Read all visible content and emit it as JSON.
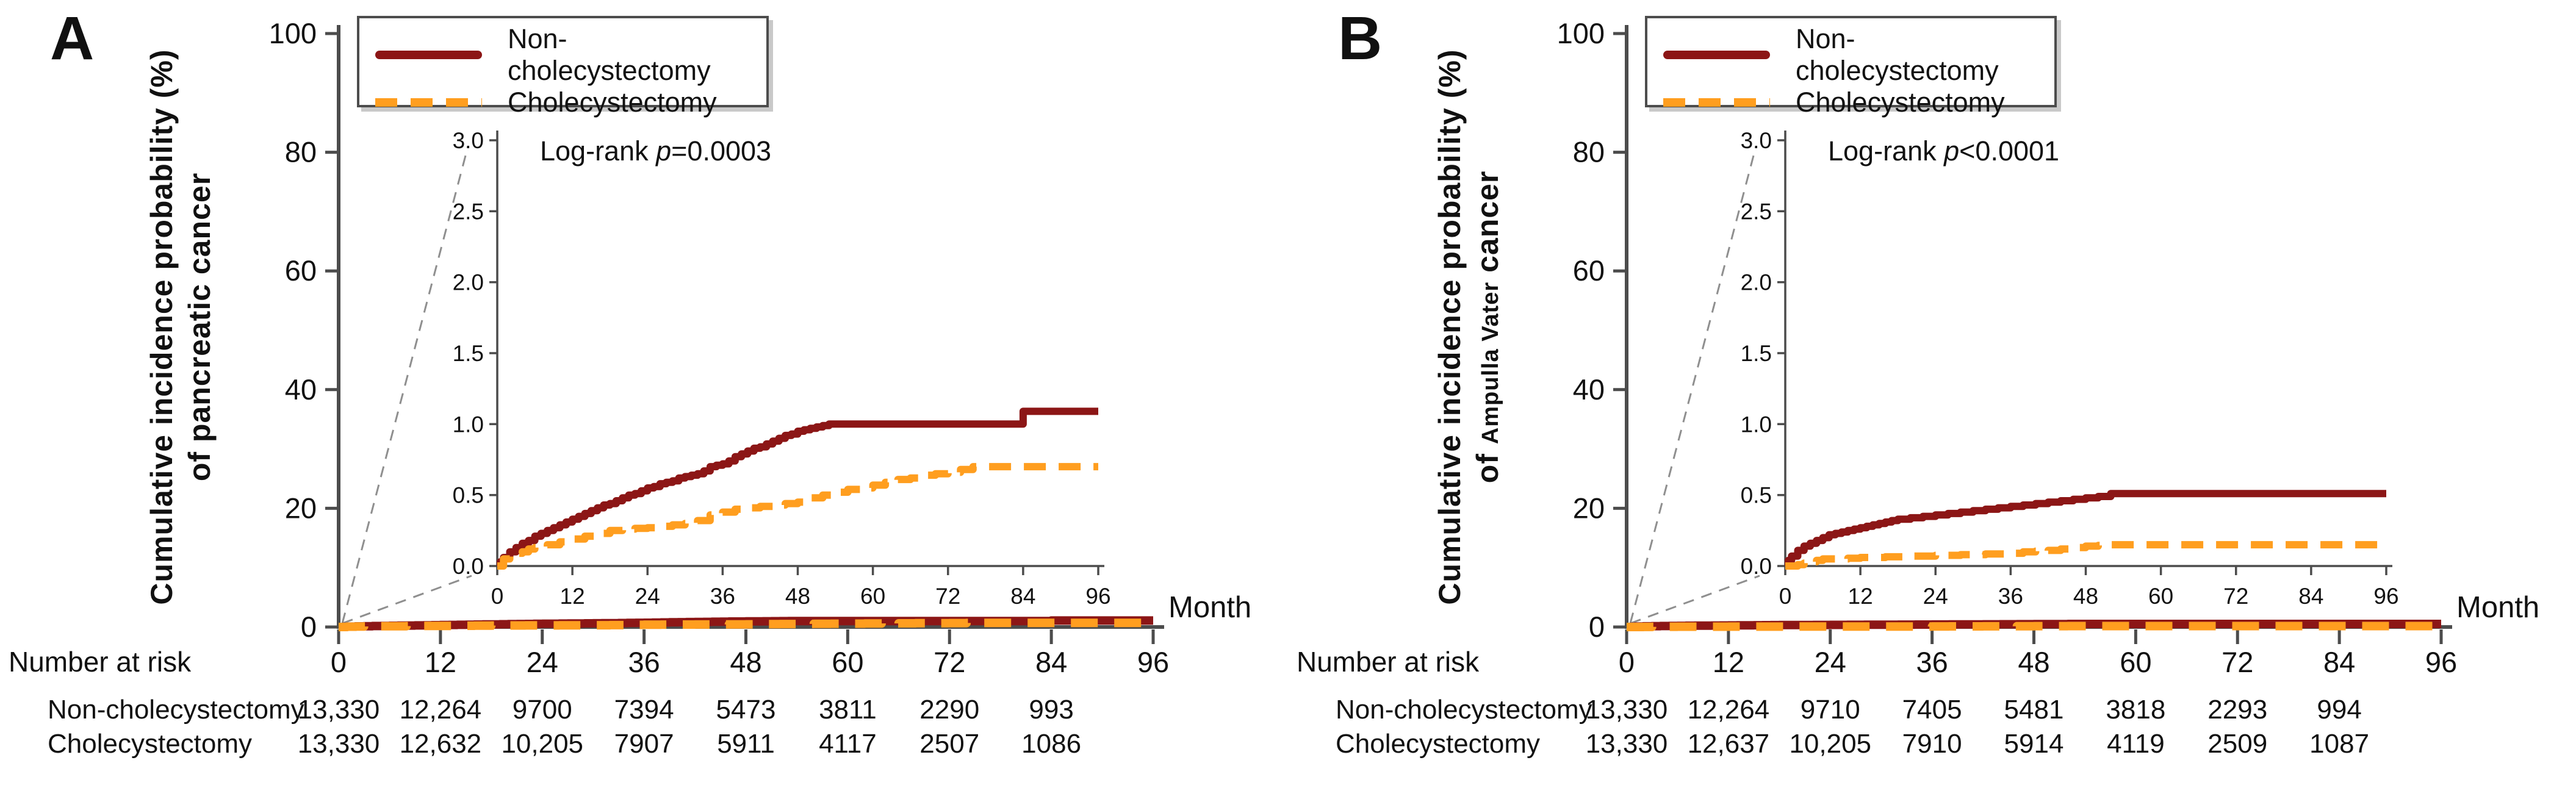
{
  "palette": {
    "non_cholecystectomy": "#8c1616",
    "cholecystectomy": "#ff9e1f",
    "axis": "#4c4c4c",
    "connector": "#8f8f8f",
    "text": "#111111"
  },
  "panels": [
    {
      "letter": "A",
      "ylabel_line1": "Cumulative incidence probability (%)",
      "ylabel_line2_prefix": "of pancreatic cancer",
      "ylabel_line2_small": "",
      "ylabel_line2_suffix": "",
      "xlabel": "Month",
      "number_at_risk_label": "Number at risk",
      "logrank": {
        "prefix": "Log-rank ",
        "p": "p",
        "rest": "=0.0003"
      },
      "legend": [
        {
          "label": "Non-cholecystectomy"
        },
        {
          "label": "Cholecystectomy"
        }
      ],
      "risk_rows": [
        {
          "label": "Non-cholecystectomy",
          "values": [
            "13,330",
            "12,264",
            "9700",
            "7394",
            "5473",
            "3811",
            "2290",
            "993"
          ]
        },
        {
          "label": "Cholecystectomy",
          "values": [
            "13,330",
            "12,632",
            "10,205",
            "7907",
            "5911",
            "4117",
            "2507",
            "1086"
          ]
        }
      ]
    },
    {
      "letter": "B",
      "ylabel_line1": "Cumulative incidence probability (%)",
      "ylabel_line2_prefix": "of ",
      "ylabel_line2_small": "Ampulla Vater",
      "ylabel_line2_suffix": " cancer",
      "xlabel": "Month",
      "number_at_risk_label": "Number at risk",
      "logrank": {
        "prefix": "Log-rank ",
        "p": "p",
        "rest": "<0.0001"
      },
      "legend": [
        {
          "label": "Non-cholecystectomy"
        },
        {
          "label": "Cholecystectomy"
        }
      ],
      "risk_rows": [
        {
          "label": "Non-cholecystectomy",
          "values": [
            "13,330",
            "12,264",
            "9710",
            "7405",
            "5481",
            "3818",
            "2293",
            "994"
          ]
        },
        {
          "label": "Cholecystectomy",
          "values": [
            "13,330",
            "12,637",
            "10,205",
            "7910",
            "5914",
            "4119",
            "2509",
            "1087"
          ]
        }
      ]
    }
  ],
  "chart_data": [
    {
      "type": "line",
      "title": "A",
      "subtitle": "Cumulative incidence of pancreatic cancer, cholecystectomy vs non-cholecystectomy",
      "xlabel": "Month",
      "ylabel": "Cumulative incidence probability (%) of pancreatic cancer",
      "annotation": "Log-rank p=0.0003",
      "legend_position": "top-left-inside",
      "grid": false,
      "x_ticks": [
        0,
        12,
        24,
        36,
        48,
        60,
        72,
        84,
        96
      ],
      "main_ylim": [
        0,
        100
      ],
      "main_y_ticks": [
        0,
        20,
        40,
        60,
        80,
        100
      ],
      "inset_ylim": [
        0,
        3
      ],
      "inset_y_tick_labels": [
        "0.0",
        "0.5",
        "1.0",
        "1.5",
        "2.0",
        "2.5",
        "3.0"
      ],
      "series": [
        {
          "name": "Non-cholecystectomy",
          "style": "solid",
          "color_key": "non_cholecystectomy",
          "points": [
            [
              0,
              0
            ],
            [
              0.5,
              0.03
            ],
            [
              1,
              0.06
            ],
            [
              2,
              0.1
            ],
            [
              3,
              0.13
            ],
            [
              4,
              0.16
            ],
            [
              5,
              0.18
            ],
            [
              6,
              0.21
            ],
            [
              7,
              0.23
            ],
            [
              8,
              0.25
            ],
            [
              9,
              0.27
            ],
            [
              10,
              0.29
            ],
            [
              11,
              0.31
            ],
            [
              12,
              0.33
            ],
            [
              13,
              0.35
            ],
            [
              14,
              0.37
            ],
            [
              15,
              0.39
            ],
            [
              16,
              0.41
            ],
            [
              17,
              0.43
            ],
            [
              18,
              0.44
            ],
            [
              19,
              0.46
            ],
            [
              20,
              0.48
            ],
            [
              21,
              0.5
            ],
            [
              22,
              0.51
            ],
            [
              23,
              0.53
            ],
            [
              24,
              0.55
            ],
            [
              25,
              0.56
            ],
            [
              26,
              0.58
            ],
            [
              27,
              0.59
            ],
            [
              28,
              0.6
            ],
            [
              29,
              0.62
            ],
            [
              30,
              0.63
            ],
            [
              31,
              0.64
            ],
            [
              32,
              0.65
            ],
            [
              33,
              0.67
            ],
            [
              34,
              0.7
            ],
            [
              35,
              0.71
            ],
            [
              36,
              0.72
            ],
            [
              37,
              0.74
            ],
            [
              38,
              0.77
            ],
            [
              39,
              0.79
            ],
            [
              40,
              0.81
            ],
            [
              41,
              0.83
            ],
            [
              42,
              0.84
            ],
            [
              43,
              0.86
            ],
            [
              44,
              0.88
            ],
            [
              45,
              0.9
            ],
            [
              46,
              0.92
            ],
            [
              47,
              0.93
            ],
            [
              48,
              0.95
            ],
            [
              49,
              0.96
            ],
            [
              50,
              0.97
            ],
            [
              51,
              0.98
            ],
            [
              52,
              0.99
            ],
            [
              53,
              1.0
            ],
            [
              83,
              1.0
            ],
            [
              84,
              1.09
            ],
            [
              96,
              1.09
            ]
          ]
        },
        {
          "name": "Cholecystectomy",
          "style": "dashed",
          "color_key": "cholecystectomy",
          "points": [
            [
              0,
              0
            ],
            [
              1,
              0.05
            ],
            [
              2,
              0.07
            ],
            [
              3,
              0.09
            ],
            [
              4,
              0.1
            ],
            [
              5,
              0.12
            ],
            [
              6,
              0.13
            ],
            [
              8,
              0.15
            ],
            [
              10,
              0.17
            ],
            [
              12,
              0.19
            ],
            [
              14,
              0.21
            ],
            [
              16,
              0.23
            ],
            [
              18,
              0.25
            ],
            [
              20,
              0.26
            ],
            [
              22,
              0.265
            ],
            [
              24,
              0.27
            ],
            [
              26,
              0.28
            ],
            [
              28,
              0.29
            ],
            [
              30,
              0.3
            ],
            [
              32,
              0.32
            ],
            [
              34,
              0.36
            ],
            [
              36,
              0.38
            ],
            [
              38,
              0.4
            ],
            [
              40,
              0.41
            ],
            [
              42,
              0.42
            ],
            [
              44,
              0.43
            ],
            [
              46,
              0.44
            ],
            [
              48,
              0.45
            ],
            [
              50,
              0.48
            ],
            [
              52,
              0.5
            ],
            [
              54,
              0.52
            ],
            [
              56,
              0.54
            ],
            [
              58,
              0.55
            ],
            [
              60,
              0.57
            ],
            [
              62,
              0.59
            ],
            [
              64,
              0.61
            ],
            [
              66,
              0.62
            ],
            [
              68,
              0.64
            ],
            [
              70,
              0.65
            ],
            [
              72,
              0.66
            ],
            [
              74,
              0.68
            ],
            [
              76,
              0.7
            ],
            [
              96,
              0.7
            ]
          ]
        }
      ]
    },
    {
      "type": "line",
      "title": "B",
      "subtitle": "Cumulative incidence of Ampulla Vater cancer, cholecystectomy vs non-cholecystectomy",
      "xlabel": "Month",
      "ylabel": "Cumulative incidence probability (%) of Ampulla Vater cancer",
      "annotation": "Log-rank p<0.0001",
      "legend_position": "top-left-inside",
      "grid": false,
      "x_ticks": [
        0,
        12,
        24,
        36,
        48,
        60,
        72,
        84,
        96
      ],
      "main_ylim": [
        0,
        100
      ],
      "main_y_ticks": [
        0,
        20,
        40,
        60,
        80,
        100
      ],
      "inset_ylim": [
        0,
        3
      ],
      "inset_y_tick_labels": [
        "0.0",
        "0.5",
        "1.0",
        "1.5",
        "2.0",
        "2.5",
        "3.0"
      ],
      "series": [
        {
          "name": "Non-cholecystectomy",
          "style": "solid",
          "color_key": "non_cholecystectomy",
          "points": [
            [
              0,
              0
            ],
            [
              0.5,
              0.04
            ],
            [
              1,
              0.07
            ],
            [
              2,
              0.11
            ],
            [
              3,
              0.14
            ],
            [
              4,
              0.16
            ],
            [
              5,
              0.18
            ],
            [
              6,
              0.2
            ],
            [
              7,
              0.22
            ],
            [
              8,
              0.23
            ],
            [
              9,
              0.24
            ],
            [
              10,
              0.25
            ],
            [
              11,
              0.26
            ],
            [
              12,
              0.27
            ],
            [
              13,
              0.28
            ],
            [
              14,
              0.29
            ],
            [
              15,
              0.3
            ],
            [
              16,
              0.31
            ],
            [
              17,
              0.32
            ],
            [
              18,
              0.33
            ],
            [
              20,
              0.34
            ],
            [
              22,
              0.35
            ],
            [
              24,
              0.36
            ],
            [
              26,
              0.37
            ],
            [
              28,
              0.38
            ],
            [
              30,
              0.39
            ],
            [
              32,
              0.4
            ],
            [
              34,
              0.41
            ],
            [
              36,
              0.42
            ],
            [
              38,
              0.43
            ],
            [
              40,
              0.44
            ],
            [
              42,
              0.45
            ],
            [
              44,
              0.46
            ],
            [
              46,
              0.47
            ],
            [
              48,
              0.48
            ],
            [
              50,
              0.49
            ],
            [
              52,
              0.51
            ],
            [
              96,
              0.51
            ]
          ]
        },
        {
          "name": "Cholecystectomy",
          "style": "dashed",
          "color_key": "cholecystectomy",
          "points": [
            [
              0,
              0
            ],
            [
              2,
              0.01
            ],
            [
              3,
              0.02
            ],
            [
              4,
              0.03
            ],
            [
              5,
              0.04
            ],
            [
              6,
              0.05
            ],
            [
              10,
              0.055
            ],
            [
              12,
              0.06
            ],
            [
              16,
              0.065
            ],
            [
              20,
              0.07
            ],
            [
              24,
              0.075
            ],
            [
              28,
              0.08
            ],
            [
              32,
              0.085
            ],
            [
              36,
              0.09
            ],
            [
              38,
              0.1
            ],
            [
              40,
              0.105
            ],
            [
              42,
              0.11
            ],
            [
              44,
              0.12
            ],
            [
              46,
              0.13
            ],
            [
              48,
              0.14
            ],
            [
              50,
              0.145
            ],
            [
              52,
              0.15
            ],
            [
              96,
              0.15
            ]
          ]
        }
      ]
    }
  ]
}
